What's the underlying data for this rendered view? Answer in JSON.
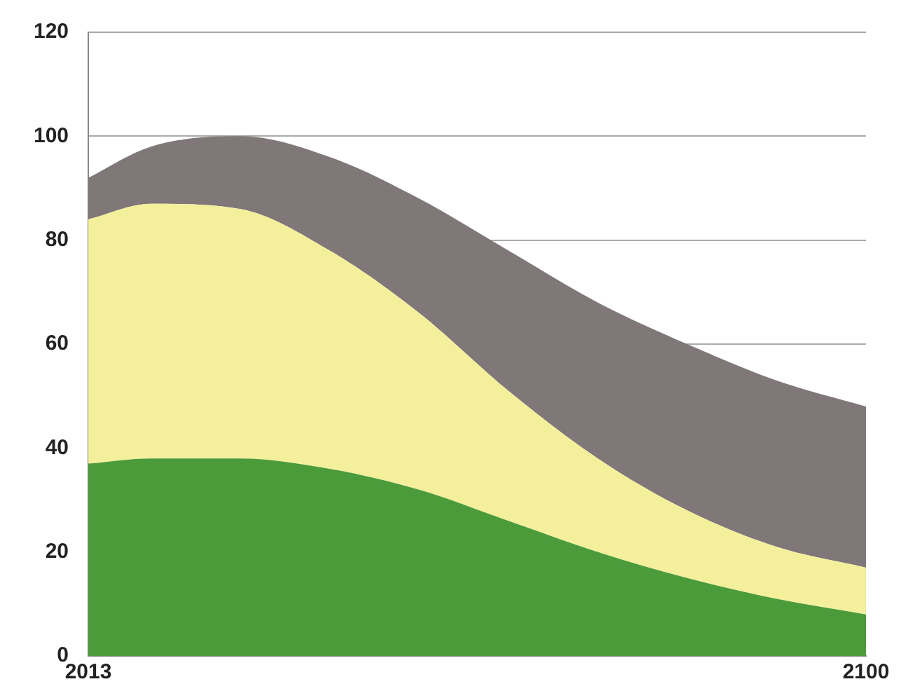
{
  "chart_data": {
    "type": "area",
    "stacked": true,
    "x": [
      2013,
      2020,
      2030,
      2040,
      2050,
      2060,
      2070,
      2080,
      2090,
      2100
    ],
    "series": [
      {
        "color": "#4b9b3b",
        "values": [
          37,
          38,
          38,
          36,
          32,
          26,
          20,
          15,
          11,
          8
        ]
      },
      {
        "color": "#f4ef9b",
        "values": [
          47,
          49,
          48,
          42,
          34,
          25,
          18,
          13,
          10,
          9
        ]
      },
      {
        "color": "#7f7778",
        "values": [
          8,
          11,
          14,
          18,
          22,
          27,
          30,
          32,
          32,
          31
        ]
      }
    ],
    "xlim": [
      2013,
      2100
    ],
    "xticks": [
      2013,
      2100
    ],
    "ylim": [
      0,
      120
    ],
    "yticks": [
      0,
      20,
      40,
      60,
      80,
      100,
      120
    ],
    "grid": "y",
    "legend": false
  }
}
